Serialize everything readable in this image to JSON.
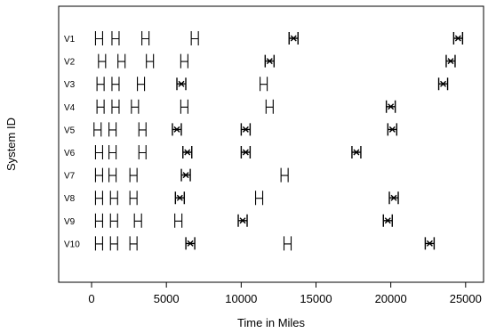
{
  "chart_data": {
    "type": "scatter",
    "title": "",
    "xlabel": "Time in Miles",
    "ylabel": "System ID",
    "xlim": [
      -2200,
      26200
    ],
    "xticks": [
      0,
      5000,
      10000,
      15000,
      20000,
      25000
    ],
    "xtick_labels": [
      "0",
      "5000",
      "10000",
      "15000",
      "20000",
      "25000"
    ],
    "grid": false,
    "legend": "none",
    "systems": [
      {
        "id": "V1",
        "events": [
          {
            "x": 500,
            "mark": "bracket"
          },
          {
            "x": 1600,
            "mark": "bracket"
          },
          {
            "x": 3600,
            "mark": "bracket"
          },
          {
            "x": 6900,
            "mark": "bracket"
          },
          {
            "x": 13500,
            "mark": "cross"
          },
          {
            "x": 24500,
            "mark": "cross"
          }
        ]
      },
      {
        "id": "V2",
        "events": [
          {
            "x": 700,
            "mark": "bracket"
          },
          {
            "x": 2000,
            "mark": "bracket"
          },
          {
            "x": 3900,
            "mark": "bracket"
          },
          {
            "x": 6200,
            "mark": "bracket"
          },
          {
            "x": 11900,
            "mark": "cross"
          },
          {
            "x": 24000,
            "mark": "cross"
          }
        ]
      },
      {
        "id": "V3",
        "events": [
          {
            "x": 600,
            "mark": "bracket"
          },
          {
            "x": 1600,
            "mark": "bracket"
          },
          {
            "x": 3300,
            "mark": "bracket"
          },
          {
            "x": 6000,
            "mark": "cross"
          },
          {
            "x": 11500,
            "mark": "bracket"
          },
          {
            "x": 23500,
            "mark": "cross"
          }
        ]
      },
      {
        "id": "V4",
        "events": [
          {
            "x": 600,
            "mark": "bracket"
          },
          {
            "x": 1600,
            "mark": "bracket"
          },
          {
            "x": 2900,
            "mark": "bracket"
          },
          {
            "x": 6200,
            "mark": "bracket"
          },
          {
            "x": 11900,
            "mark": "bracket"
          },
          {
            "x": 20000,
            "mark": "cross"
          }
        ]
      },
      {
        "id": "V5",
        "events": [
          {
            "x": 400,
            "mark": "bracket"
          },
          {
            "x": 1400,
            "mark": "bracket"
          },
          {
            "x": 3400,
            "mark": "bracket"
          },
          {
            "x": 5700,
            "mark": "cross"
          },
          {
            "x": 10300,
            "mark": "cross"
          },
          {
            "x": 20100,
            "mark": "cross"
          }
        ]
      },
      {
        "id": "V6",
        "events": [
          {
            "x": 500,
            "mark": "bracket"
          },
          {
            "x": 1400,
            "mark": "bracket"
          },
          {
            "x": 3400,
            "mark": "bracket"
          },
          {
            "x": 6400,
            "mark": "cross"
          },
          {
            "x": 10300,
            "mark": "cross"
          },
          {
            "x": 17700,
            "mark": "cross"
          }
        ]
      },
      {
        "id": "V7",
        "events": [
          {
            "x": 500,
            "mark": "bracket"
          },
          {
            "x": 1400,
            "mark": "bracket"
          },
          {
            "x": 2800,
            "mark": "bracket"
          },
          {
            "x": 6300,
            "mark": "cross"
          },
          {
            "x": 12900,
            "mark": "bracket"
          }
        ]
      },
      {
        "id": "V8",
        "events": [
          {
            "x": 500,
            "mark": "bracket"
          },
          {
            "x": 1500,
            "mark": "bracket"
          },
          {
            "x": 2800,
            "mark": "bracket"
          },
          {
            "x": 5900,
            "mark": "cross"
          },
          {
            "x": 11200,
            "mark": "bracket"
          },
          {
            "x": 20200,
            "mark": "cross"
          }
        ]
      },
      {
        "id": "V9",
        "events": [
          {
            "x": 500,
            "mark": "bracket"
          },
          {
            "x": 1500,
            "mark": "bracket"
          },
          {
            "x": 3100,
            "mark": "bracket"
          },
          {
            "x": 5800,
            "mark": "bracket"
          },
          {
            "x": 10100,
            "mark": "cross"
          },
          {
            "x": 19800,
            "mark": "cross"
          }
        ]
      },
      {
        "id": "V10",
        "events": [
          {
            "x": 500,
            "mark": "bracket"
          },
          {
            "x": 1500,
            "mark": "bracket"
          },
          {
            "x": 2800,
            "mark": "bracket"
          },
          {
            "x": 6600,
            "mark": "cross"
          },
          {
            "x": 13100,
            "mark": "bracket"
          },
          {
            "x": 22600,
            "mark": "cross"
          }
        ]
      }
    ]
  }
}
